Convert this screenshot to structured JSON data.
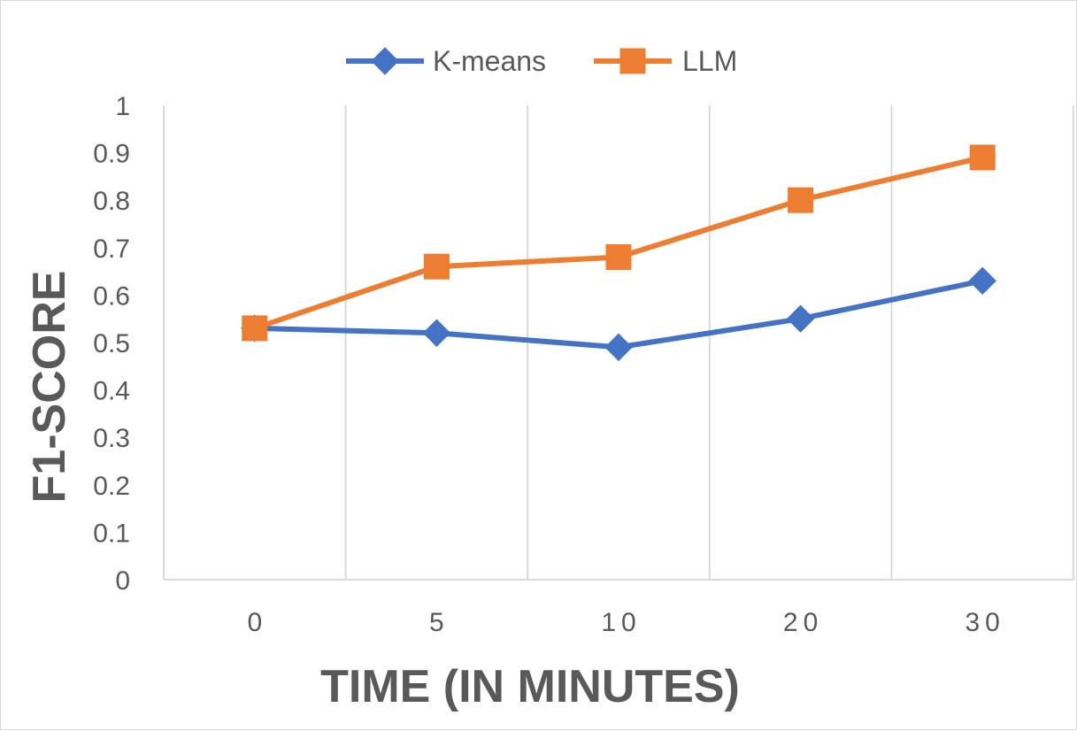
{
  "chart_data": {
    "type": "line",
    "categories": [
      "0",
      "5",
      "10",
      "20",
      "30"
    ],
    "series": [
      {
        "name": "K-means",
        "values": [
          0.53,
          0.52,
          0.49,
          0.55,
          0.63
        ],
        "color": "#4472C4",
        "marker": "diamond"
      },
      {
        "name": "LLM",
        "values": [
          0.53,
          0.66,
          0.68,
          0.8,
          0.89
        ],
        "color": "#ED7D31",
        "marker": "square"
      }
    ],
    "title": "",
    "xlabel": "TIME (IN MINUTES)",
    "ylabel": "F1-SCORE",
    "ylim": [
      0,
      1
    ],
    "yticks": [
      "0",
      "0.1",
      "0.2",
      "0.3",
      "0.4",
      "0.5",
      "0.6",
      "0.7",
      "0.8",
      "0.9",
      "1"
    ],
    "grid": "vertical",
    "legend_position": "top"
  }
}
